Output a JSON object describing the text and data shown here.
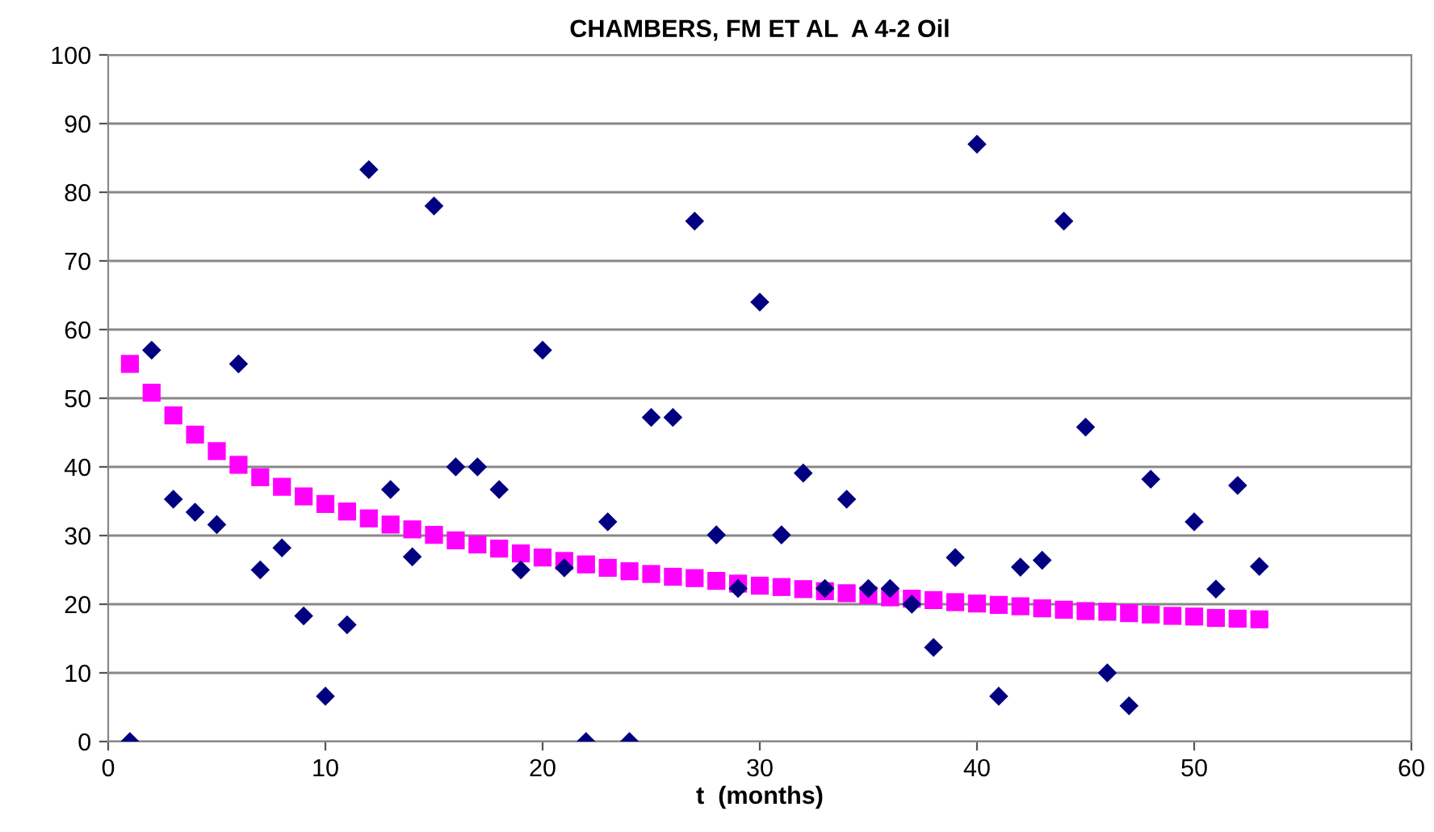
{
  "chart_data": {
    "type": "scatter",
    "title": "CHAMBERS, FM ET AL  A 4-2 Oil",
    "xlabel": "t  (months)",
    "xlim": [
      0,
      60
    ],
    "xticks": [
      0,
      10,
      20,
      30,
      40,
      50,
      60
    ],
    "ylim": [
      0,
      100
    ],
    "yticks": [
      0,
      10,
      20,
      30,
      40,
      50,
      60,
      70,
      80,
      90,
      100
    ],
    "grid": "y",
    "legend": false,
    "series": [
      {
        "color": "#000080",
        "marker": "diamond",
        "x": [
          1,
          2,
          3,
          4,
          5,
          6,
          7,
          8,
          9,
          10,
          11,
          12,
          13,
          14,
          15,
          16,
          17,
          18,
          19,
          20,
          21,
          22,
          23,
          24,
          25,
          26,
          27,
          28,
          29,
          30,
          31,
          32,
          33,
          34,
          35,
          36,
          37,
          38,
          39,
          40,
          41,
          42,
          43,
          44,
          45,
          46,
          47,
          48,
          49,
          50,
          51,
          52,
          53
        ],
        "values": [
          0,
          57,
          35.3,
          33.4,
          31.6,
          55,
          25,
          28.2,
          18.3,
          6.6,
          17,
          83.3,
          36.7,
          26.9,
          78,
          40,
          40,
          36.7,
          25,
          57,
          25.3,
          0,
          32,
          0,
          47.2,
          47.2,
          75.8,
          30.1,
          22.3,
          64,
          30.1,
          39.1,
          22.3,
          35.3,
          22.3,
          22.3,
          20,
          13.7,
          26.8,
          87,
          6.6,
          25.4,
          26.4,
          75.8,
          45.8,
          10,
          5.2,
          38.2,
          null,
          32,
          22.2,
          37.3,
          25.5
        ]
      },
      {
        "color": "#ff00ff",
        "marker": "square",
        "x": [
          1,
          2,
          3,
          4,
          5,
          6,
          7,
          8,
          9,
          10,
          11,
          12,
          13,
          14,
          15,
          16,
          17,
          18,
          19,
          20,
          21,
          22,
          23,
          24,
          25,
          26,
          27,
          28,
          29,
          30,
          31,
          32,
          33,
          34,
          35,
          36,
          37,
          38,
          39,
          40,
          41,
          42,
          43,
          44,
          45,
          46,
          47,
          48,
          49,
          50,
          51,
          52,
          53
        ],
        "values": [
          55,
          50.8,
          47.5,
          44.7,
          42.3,
          40.3,
          38.5,
          37.1,
          35.7,
          34.6,
          33.5,
          32.5,
          31.6,
          30.9,
          30.1,
          29.3,
          28.7,
          28.1,
          27.4,
          26.8,
          26.3,
          25.8,
          25.3,
          24.8,
          24.4,
          24.0,
          23.8,
          23.4,
          23.0,
          22.7,
          22.5,
          22.2,
          21.9,
          21.6,
          21.3,
          21.0,
          20.8,
          20.6,
          20.3,
          20.1,
          19.9,
          19.7,
          19.4,
          19.2,
          19.0,
          18.9,
          18.7,
          18.5,
          18.3,
          18.2,
          18.0,
          17.9,
          17.8
        ]
      }
    ]
  }
}
